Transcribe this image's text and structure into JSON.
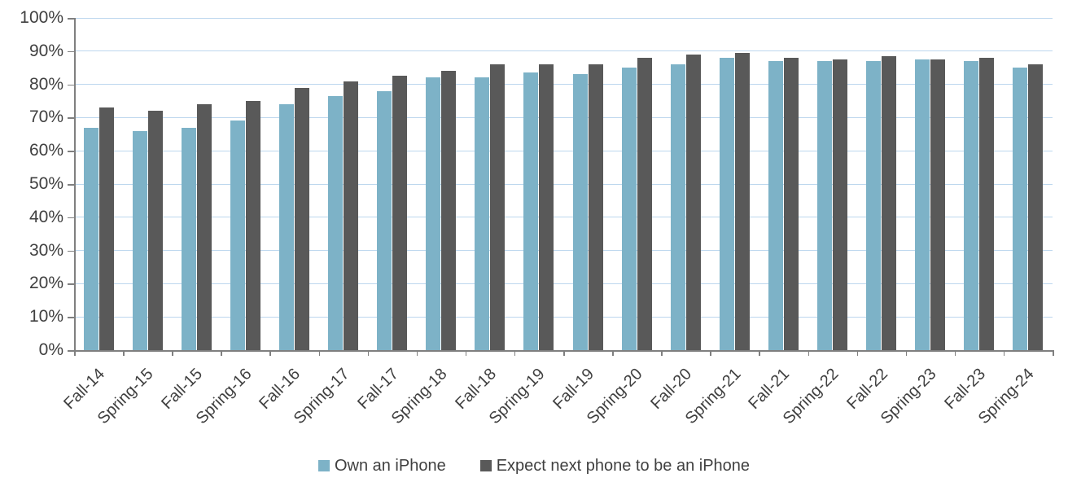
{
  "chart_data": {
    "type": "bar",
    "title": "",
    "categories": [
      "Fall-14",
      "Spring-15",
      "Fall-15",
      "Spring-16",
      "Fall-16",
      "Spring-17",
      "Fall-17",
      "Spring-18",
      "Fall-18",
      "Spring-19",
      "Fall-19",
      "Spring-20",
      "Fall-20",
      "Spring-21",
      "Fall-21",
      "Spring-22",
      "Fall-22",
      "Spring-23",
      "Fall-23",
      "Spring-24"
    ],
    "series": [
      {
        "name": "Own an iPhone",
        "color": "#7db2c7",
        "values": [
          67,
          66,
          67,
          69,
          74,
          76.5,
          78,
          82,
          82,
          83.5,
          83,
          85,
          86,
          88,
          87,
          87,
          87,
          87.5,
          87,
          85
        ]
      },
      {
        "name": "Expect next phone to be an iPhone",
        "color": "#595959",
        "values": [
          73,
          72,
          74,
          75,
          79,
          81,
          82.5,
          84,
          86,
          86,
          86,
          88,
          89,
          89.5,
          88,
          87.5,
          88.5,
          87.5,
          88,
          86
        ]
      }
    ],
    "ylim": [
      0,
      100
    ],
    "ytick_step": 10,
    "ytick_labels": [
      "0%",
      "10%",
      "20%",
      "30%",
      "40%",
      "50%",
      "60%",
      "70%",
      "80%",
      "90%",
      "100%"
    ],
    "xlabel": "",
    "ylabel": "",
    "grid": "horizontal",
    "legend_position": "bottom",
    "colors": {
      "gridline": "#bdd7ee",
      "axis": "#7f7f7f",
      "text": "#404040",
      "background": "#ffffff"
    }
  }
}
